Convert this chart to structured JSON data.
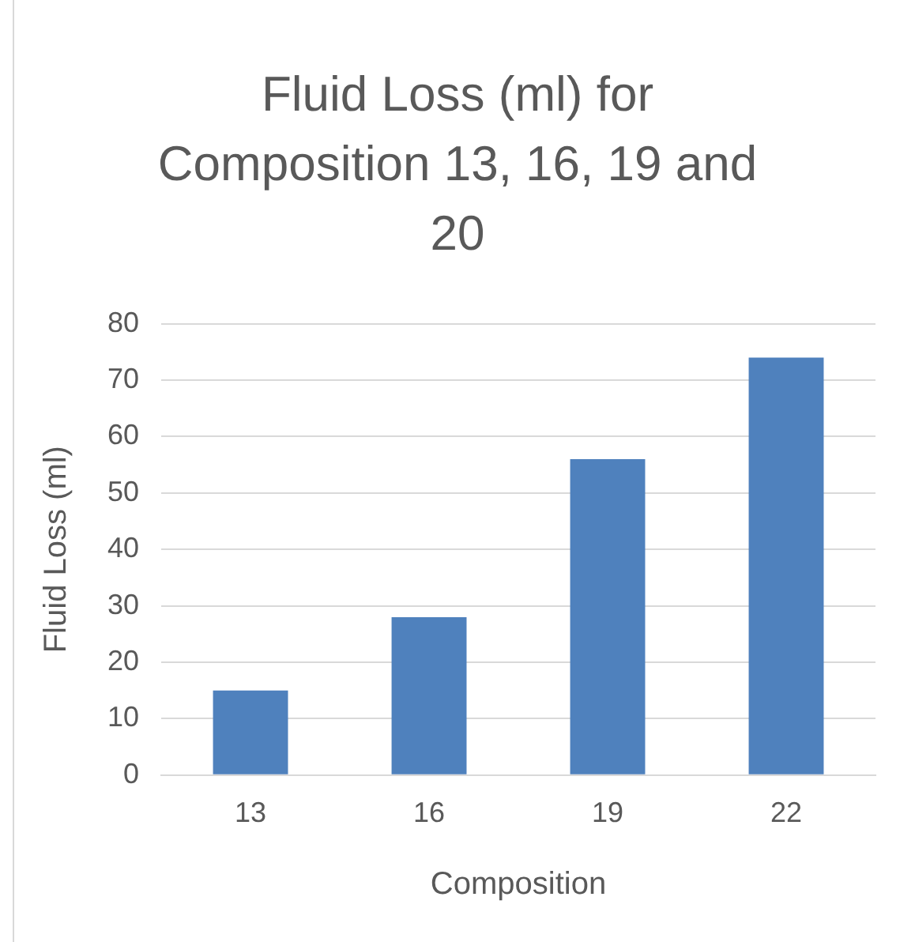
{
  "chart_data": {
    "type": "bar",
    "title": "Fluid Loss (ml) for Composition 13, 16, 19 and 20",
    "xlabel": "Composition",
    "ylabel": "Fluid Loss (ml)",
    "categories": [
      "13",
      "16",
      "19",
      "22"
    ],
    "values": [
      15,
      28,
      56,
      74
    ],
    "color": "#4f81bd",
    "ylim": [
      0,
      80
    ],
    "yticks": [
      0,
      10,
      20,
      30,
      40,
      50,
      60,
      70,
      80
    ],
    "grid": "y",
    "legend": false
  }
}
